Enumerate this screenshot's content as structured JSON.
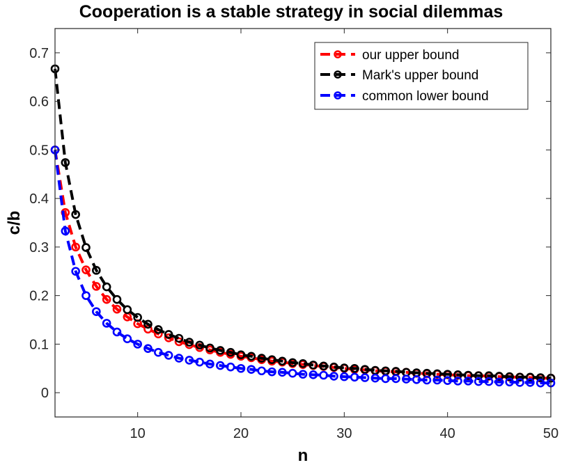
{
  "chart_data": {
    "type": "line",
    "title": "Cooperation is a stable strategy in social dilemmas",
    "xlabel": "n",
    "ylabel": "c/b",
    "xlim": [
      2,
      50
    ],
    "ylim": [
      -0.05,
      0.75
    ],
    "xticks": [
      10,
      20,
      30,
      40,
      50
    ],
    "yticks": [
      0,
      0.1,
      0.2,
      0.3,
      0.4,
      0.5,
      0.6,
      0.7
    ],
    "grid": false,
    "legend_position": "top-right",
    "x": [
      2,
      3,
      4,
      5,
      6,
      7,
      8,
      9,
      10,
      11,
      12,
      13,
      14,
      15,
      16,
      17,
      18,
      19,
      20,
      21,
      22,
      23,
      24,
      25,
      26,
      27,
      28,
      29,
      30,
      31,
      32,
      33,
      34,
      35,
      36,
      37,
      38,
      39,
      40,
      41,
      42,
      43,
      44,
      45,
      46,
      47,
      48,
      49,
      50
    ],
    "series": [
      {
        "name": "our upper bound",
        "color": "#ff0000",
        "line_style": "dashed",
        "marker": "open-circle",
        "values": [
          0.5,
          0.371,
          0.3,
          0.253,
          0.219,
          0.192,
          0.172,
          0.156,
          0.142,
          0.131,
          0.121,
          0.113,
          0.105,
          0.099,
          0.093,
          0.088,
          0.083,
          0.079,
          0.075,
          0.072,
          0.068,
          0.065,
          0.063,
          0.06,
          0.058,
          0.056,
          0.054,
          0.052,
          0.05,
          0.048,
          0.047,
          0.045,
          0.044,
          0.043,
          0.042,
          0.04,
          0.039,
          0.038,
          0.037,
          0.036,
          0.035,
          0.035,
          0.034,
          0.033,
          0.032,
          0.032,
          0.031,
          0.03,
          0.03
        ]
      },
      {
        "name": "Mark's upper bound",
        "color": "#000000",
        "line_style": "dashed",
        "marker": "open-circle",
        "values": [
          0.667,
          0.474,
          0.367,
          0.299,
          0.252,
          0.218,
          0.192,
          0.171,
          0.155,
          0.141,
          0.13,
          0.12,
          0.112,
          0.104,
          0.098,
          0.092,
          0.087,
          0.083,
          0.078,
          0.075,
          0.071,
          0.068,
          0.065,
          0.062,
          0.06,
          0.057,
          0.055,
          0.053,
          0.051,
          0.05,
          0.048,
          0.046,
          0.045,
          0.044,
          0.042,
          0.041,
          0.04,
          0.039,
          0.038,
          0.037,
          0.036,
          0.035,
          0.035,
          0.034,
          0.033,
          0.032,
          0.032,
          0.031,
          0.03
        ]
      },
      {
        "name": "common lower bound",
        "color": "#0000ff",
        "line_style": "dashed",
        "marker": "open-circle",
        "values": [
          0.5,
          0.333,
          0.25,
          0.2,
          0.167,
          0.143,
          0.125,
          0.111,
          0.1,
          0.091,
          0.083,
          0.077,
          0.071,
          0.067,
          0.063,
          0.059,
          0.056,
          0.053,
          0.05,
          0.048,
          0.045,
          0.043,
          0.042,
          0.04,
          0.038,
          0.037,
          0.036,
          0.034,
          0.033,
          0.032,
          0.031,
          0.03,
          0.029,
          0.029,
          0.028,
          0.027,
          0.026,
          0.026,
          0.025,
          0.024,
          0.024,
          0.023,
          0.023,
          0.022,
          0.022,
          0.021,
          0.021,
          0.02,
          0.02
        ]
      }
    ]
  }
}
